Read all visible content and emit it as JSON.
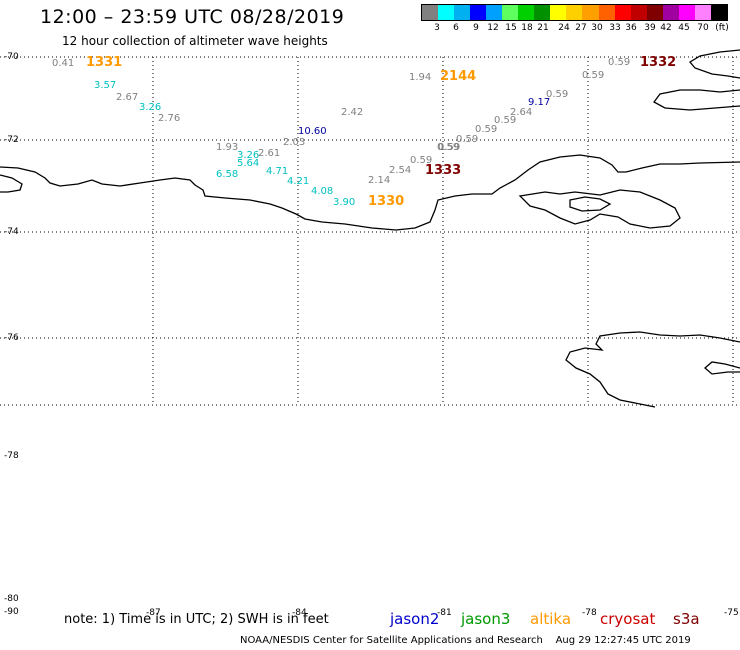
{
  "header": {
    "title": "12:00 – 23:59 UTC 08/28/2019",
    "subtitle": "12 hour collection of altimeter wave heights"
  },
  "scale": {
    "colors": [
      "#808080",
      "#00ffff",
      "#00b0f0",
      "#0000ff",
      "#00a0ff",
      "#60ff60",
      "#00d000",
      "#009000",
      "#ffff00",
      "#ffd000",
      "#ffa000",
      "#ff6000",
      "#ff0000",
      "#c00000",
      "#800000",
      "#a000a0",
      "#ff00ff",
      "#ff80ff",
      "#000000"
    ],
    "labels": [
      "3",
      "6",
      "9",
      "12",
      "15",
      "18",
      "21",
      "24",
      "27",
      "30",
      "33",
      "36",
      "39",
      "42",
      "45",
      "70",
      "(ft)"
    ]
  },
  "map": {
    "lat_labels": [
      "-70",
      "-72",
      "-74",
      "-76",
      "-78",
      "-80",
      "-90"
    ],
    "lon_labels": [
      "-87",
      "-84",
      "-81",
      "-78",
      "-75"
    ]
  },
  "observations": [
    {
      "v": "0.41",
      "c": "#808080"
    },
    {
      "v": "3.57",
      "c": "#00c0c0"
    },
    {
      "v": "2.67",
      "c": "#808080"
    },
    {
      "v": "3.26",
      "c": "#00c0c0"
    },
    {
      "v": "2.76",
      "c": "#808080"
    },
    {
      "v": "1.94",
      "c": "#808080"
    },
    {
      "v": "0.59",
      "c": "#808080"
    },
    {
      "v": "0.59",
      "c": "#808080"
    },
    {
      "v": "0.59",
      "c": "#808080"
    },
    {
      "v": "9.17",
      "c": "#0000a0"
    },
    {
      "v": "2.64",
      "c": "#808080"
    },
    {
      "v": "0.59",
      "c": "#808080"
    },
    {
      "v": "0.59",
      "c": "#808080"
    },
    {
      "v": "0.59",
      "c": "#808080"
    },
    {
      "v": "0.59",
      "c": "#808080"
    },
    {
      "v": "2.42",
      "c": "#808080"
    },
    {
      "v": "10.60",
      "c": "#0000a0"
    },
    {
      "v": "2.03",
      "c": "#808080"
    },
    {
      "v": "1.93",
      "c": "#808080"
    },
    {
      "v": "3.26",
      "c": "#00c0c0"
    },
    {
      "v": "2.61",
      "c": "#808080"
    },
    {
      "v": "5.64",
      "c": "#00c0c0"
    },
    {
      "v": "6.58",
      "c": "#00c0c0"
    },
    {
      "v": "4.71",
      "c": "#00c0c0"
    },
    {
      "v": "4.21",
      "c": "#00c0c0"
    },
    {
      "v": "4.08",
      "c": "#00c0c0"
    },
    {
      "v": "3.90",
      "c": "#00c0c0"
    },
    {
      "v": "2.14",
      "c": "#808080"
    },
    {
      "v": "2.54",
      "c": "#808080"
    },
    {
      "v": "0.59",
      "c": "#808080"
    },
    {
      "v": "0.59",
      "c": "#808080"
    }
  ],
  "pass_times": [
    {
      "t": "1331",
      "c": "#ff9900"
    },
    {
      "t": "2144",
      "c": "#ff9900"
    },
    {
      "t": "1332",
      "c": "#800000"
    },
    {
      "t": "1333",
      "c": "#800000"
    },
    {
      "t": "1330",
      "c": "#ff9900"
    }
  ],
  "footer": {
    "note": "note: 1) Time is in UTC; 2) SWH is in feet",
    "credit": "NOAA/NESDIS Center for Satellite Applications and Research",
    "timestamp": "Aug 29 12:27:45 UTC 2019"
  },
  "satellites": [
    {
      "name": "jason2",
      "color": "#0000cc"
    },
    {
      "name": "jason3",
      "color": "#009900"
    },
    {
      "name": "altika",
      "color": "#ff9900"
    },
    {
      "name": "cryosat",
      "color": "#cc0000"
    },
    {
      "name": "s3a",
      "color": "#800000"
    }
  ]
}
